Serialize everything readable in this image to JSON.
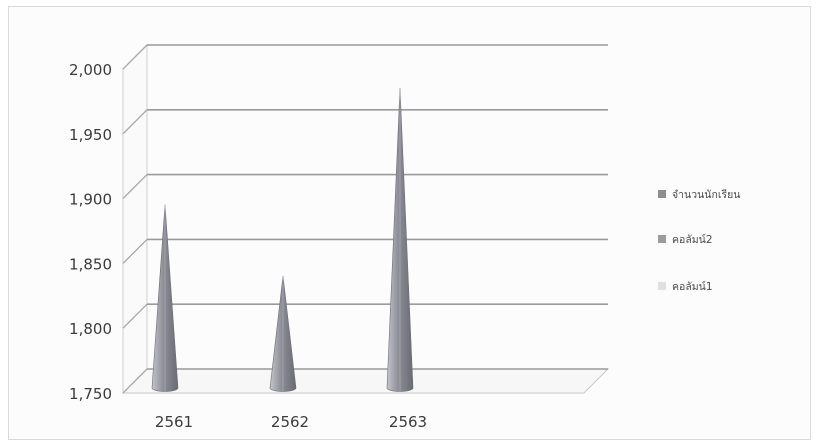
{
  "chart_data": {
    "type": "bar",
    "subtype": "3d-cone",
    "categories": [
      "2561",
      "2562",
      "2563"
    ],
    "series": [
      {
        "name": "จำนวนนักเรียน",
        "values": [
          1890,
          1835,
          1980
        ],
        "color": "#8e8e8e"
      },
      {
        "name": "คอลัมน์2",
        "values": [
          null,
          null,
          null
        ],
        "color": "#9c9c9c"
      },
      {
        "name": "คอลัมน์1",
        "values": [
          null,
          null,
          null
        ],
        "color": "#e0e0e0"
      }
    ],
    "y_ticks": [
      "1,750",
      "1,800",
      "1,850",
      "1,900",
      "1,950",
      "2,000"
    ],
    "ylim": [
      1750,
      2000
    ],
    "grid": true,
    "legend_position": "right",
    "title": "",
    "xlabel": "",
    "ylabel": ""
  }
}
